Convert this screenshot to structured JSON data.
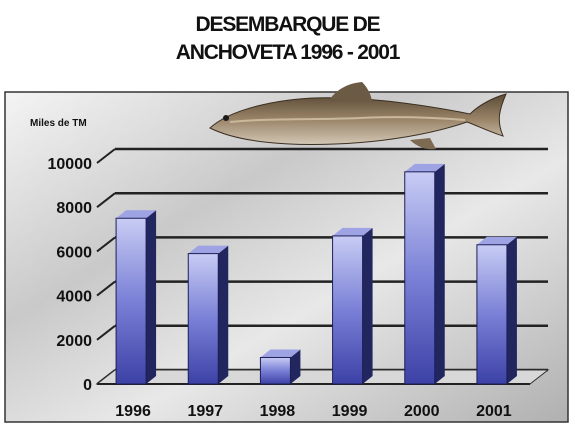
{
  "chart_data": {
    "type": "bar",
    "title_lines": [
      "DESEMBARQUE DE",
      "ANCHOVETA 1996 - 2001"
    ],
    "ylabel": "Miles de TM",
    "xlabel": "",
    "categories": [
      "1996",
      "1997",
      "1998",
      "1999",
      "2000",
      "2001"
    ],
    "values": [
      7500,
      5900,
      1200,
      6700,
      9600,
      6300
    ],
    "ylim": [
      0,
      10000
    ],
    "yticks": [
      0,
      2000,
      4000,
      6000,
      8000,
      10000
    ],
    "grid": true,
    "legend": "none",
    "bar_color": "#4a4fb0",
    "decoration": "anchovy-fish-image"
  }
}
